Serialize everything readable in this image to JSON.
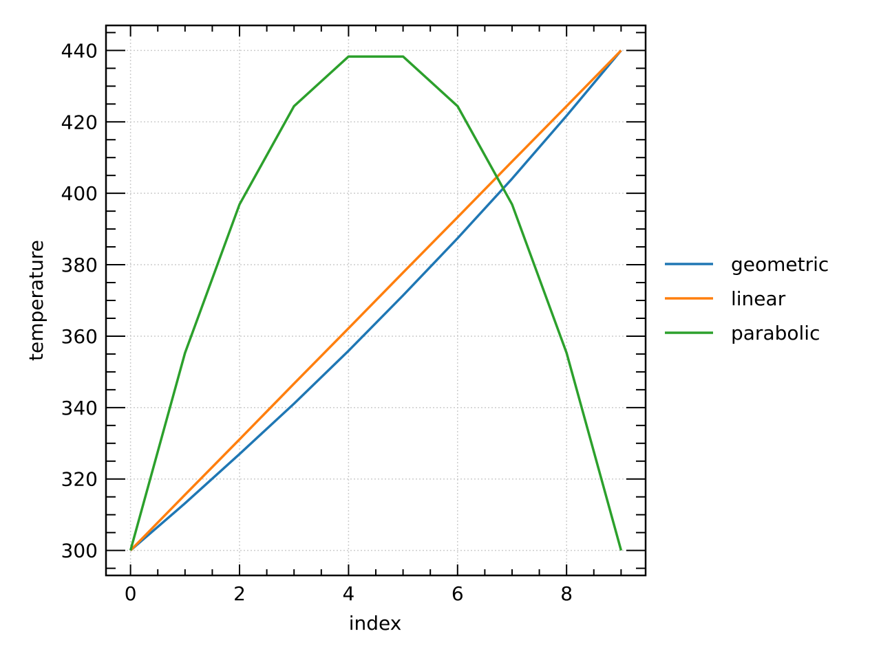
{
  "chart_data": {
    "type": "line",
    "xlabel": "index",
    "ylabel": "temperature",
    "xlim": [
      -0.45,
      9.45
    ],
    "ylim": [
      293,
      447
    ],
    "xticks": [
      0,
      2,
      4,
      6,
      8
    ],
    "xminor_step": 0.5,
    "yticks": [
      300,
      320,
      340,
      360,
      380,
      400,
      420,
      440
    ],
    "yminor_step": 5,
    "grid": true,
    "legend_position": "outside-right",
    "x": [
      0,
      1,
      2,
      3,
      4,
      5,
      6,
      7,
      8,
      9
    ],
    "series": [
      {
        "name": "geometric",
        "color": "#1f77b4",
        "values": [
          300,
          313.2,
          327.0,
          341.1,
          355.9,
          371.4,
          387.4,
          404.1,
          421.7,
          440
        ]
      },
      {
        "name": "linear",
        "color": "#ff7f0e",
        "values": [
          300,
          315.6,
          331.1,
          346.7,
          362.2,
          377.8,
          393.3,
          408.9,
          424.4,
          440
        ]
      },
      {
        "name": "parabolic",
        "color": "#2ca02c",
        "values": [
          300,
          355.3,
          396.9,
          424.4,
          438.3,
          438.3,
          424.4,
          396.9,
          355.3,
          300
        ]
      }
    ]
  }
}
